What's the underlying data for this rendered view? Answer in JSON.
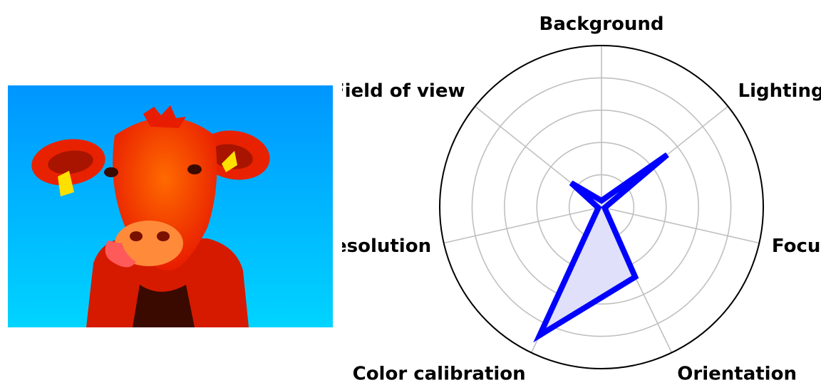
{
  "image": {
    "subject": "cow-photo",
    "colors": {
      "sky_top": "#0096ff",
      "sky_bottom": "#00d4ff",
      "body": "#ff2a00",
      "ear_tag": "#ffe000"
    }
  },
  "chart_data": {
    "type": "radar",
    "categories": [
      "Background",
      "Lighting",
      "Focus",
      "Orientation",
      "Color calibration",
      "Resolution",
      "Field of view"
    ],
    "values": [
      0.2,
      2.6,
      0.1,
      2.4,
      4.4,
      0.1,
      1.2
    ],
    "rmax": 5,
    "rings": [
      1,
      2,
      3,
      4
    ],
    "grid": true,
    "colors": {
      "line": "#0000ff",
      "fill": "#e0e0fa",
      "grid": "#c0c0c0",
      "frame": "#000000"
    }
  }
}
